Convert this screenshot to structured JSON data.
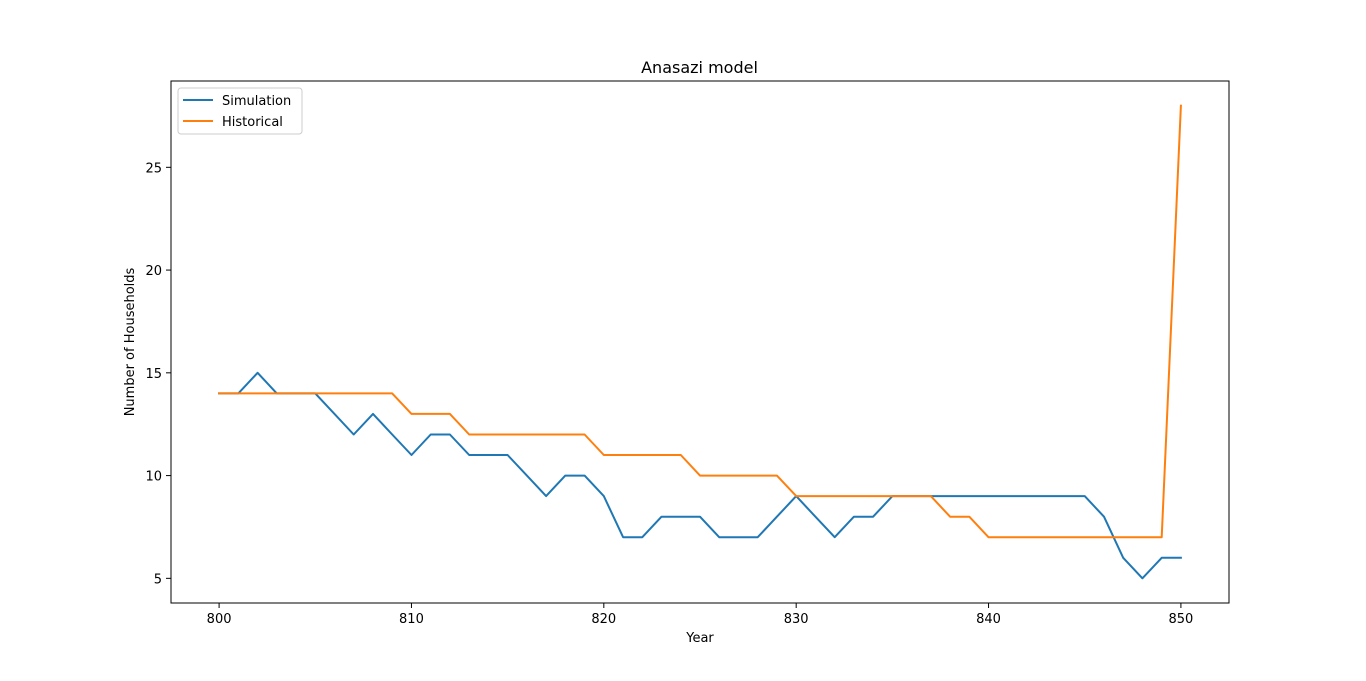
{
  "chart_data": {
    "type": "line",
    "title": "Anasazi model",
    "xlabel": "Year",
    "ylabel": "Number of Households",
    "xlim": [
      797.5,
      852.5
    ],
    "ylim": [
      3.8,
      29.2
    ],
    "x_ticks": [
      800,
      810,
      820,
      830,
      840,
      850
    ],
    "y_ticks": [
      5,
      10,
      15,
      20,
      25
    ],
    "grid": false,
    "legend_position": "top-left",
    "x": [
      800,
      801,
      802,
      803,
      804,
      805,
      806,
      807,
      808,
      809,
      810,
      811,
      812,
      813,
      814,
      815,
      816,
      817,
      818,
      819,
      820,
      821,
      822,
      823,
      824,
      825,
      826,
      827,
      828,
      829,
      830,
      831,
      832,
      833,
      834,
      835,
      836,
      837,
      838,
      839,
      840,
      841,
      842,
      843,
      844,
      845,
      846,
      847,
      848,
      849,
      850
    ],
    "series": [
      {
        "name": "Simulation",
        "color": "#1f77b4",
        "values": [
          14,
          14,
          15,
          14,
          14,
          14,
          13,
          12,
          13,
          12,
          11,
          12,
          12,
          11,
          11,
          11,
          10,
          9,
          10,
          10,
          9,
          7,
          7,
          8,
          8,
          8,
          7,
          7,
          7,
          8,
          9,
          8,
          7,
          8,
          8,
          9,
          9,
          9,
          9,
          9,
          9,
          9,
          9,
          9,
          9,
          9,
          8,
          6,
          5,
          6,
          6
        ]
      },
      {
        "name": "Historical",
        "color": "#ff7f0e",
        "values": [
          14,
          14,
          14,
          14,
          14,
          14,
          14,
          14,
          14,
          14,
          13,
          13,
          13,
          12,
          12,
          12,
          12,
          12,
          12,
          12,
          11,
          11,
          11,
          11,
          11,
          10,
          10,
          10,
          10,
          10,
          9,
          9,
          9,
          9,
          9,
          9,
          9,
          9,
          8,
          8,
          7,
          7,
          7,
          7,
          7,
          7,
          7,
          7,
          7,
          7,
          28
        ]
      }
    ]
  }
}
